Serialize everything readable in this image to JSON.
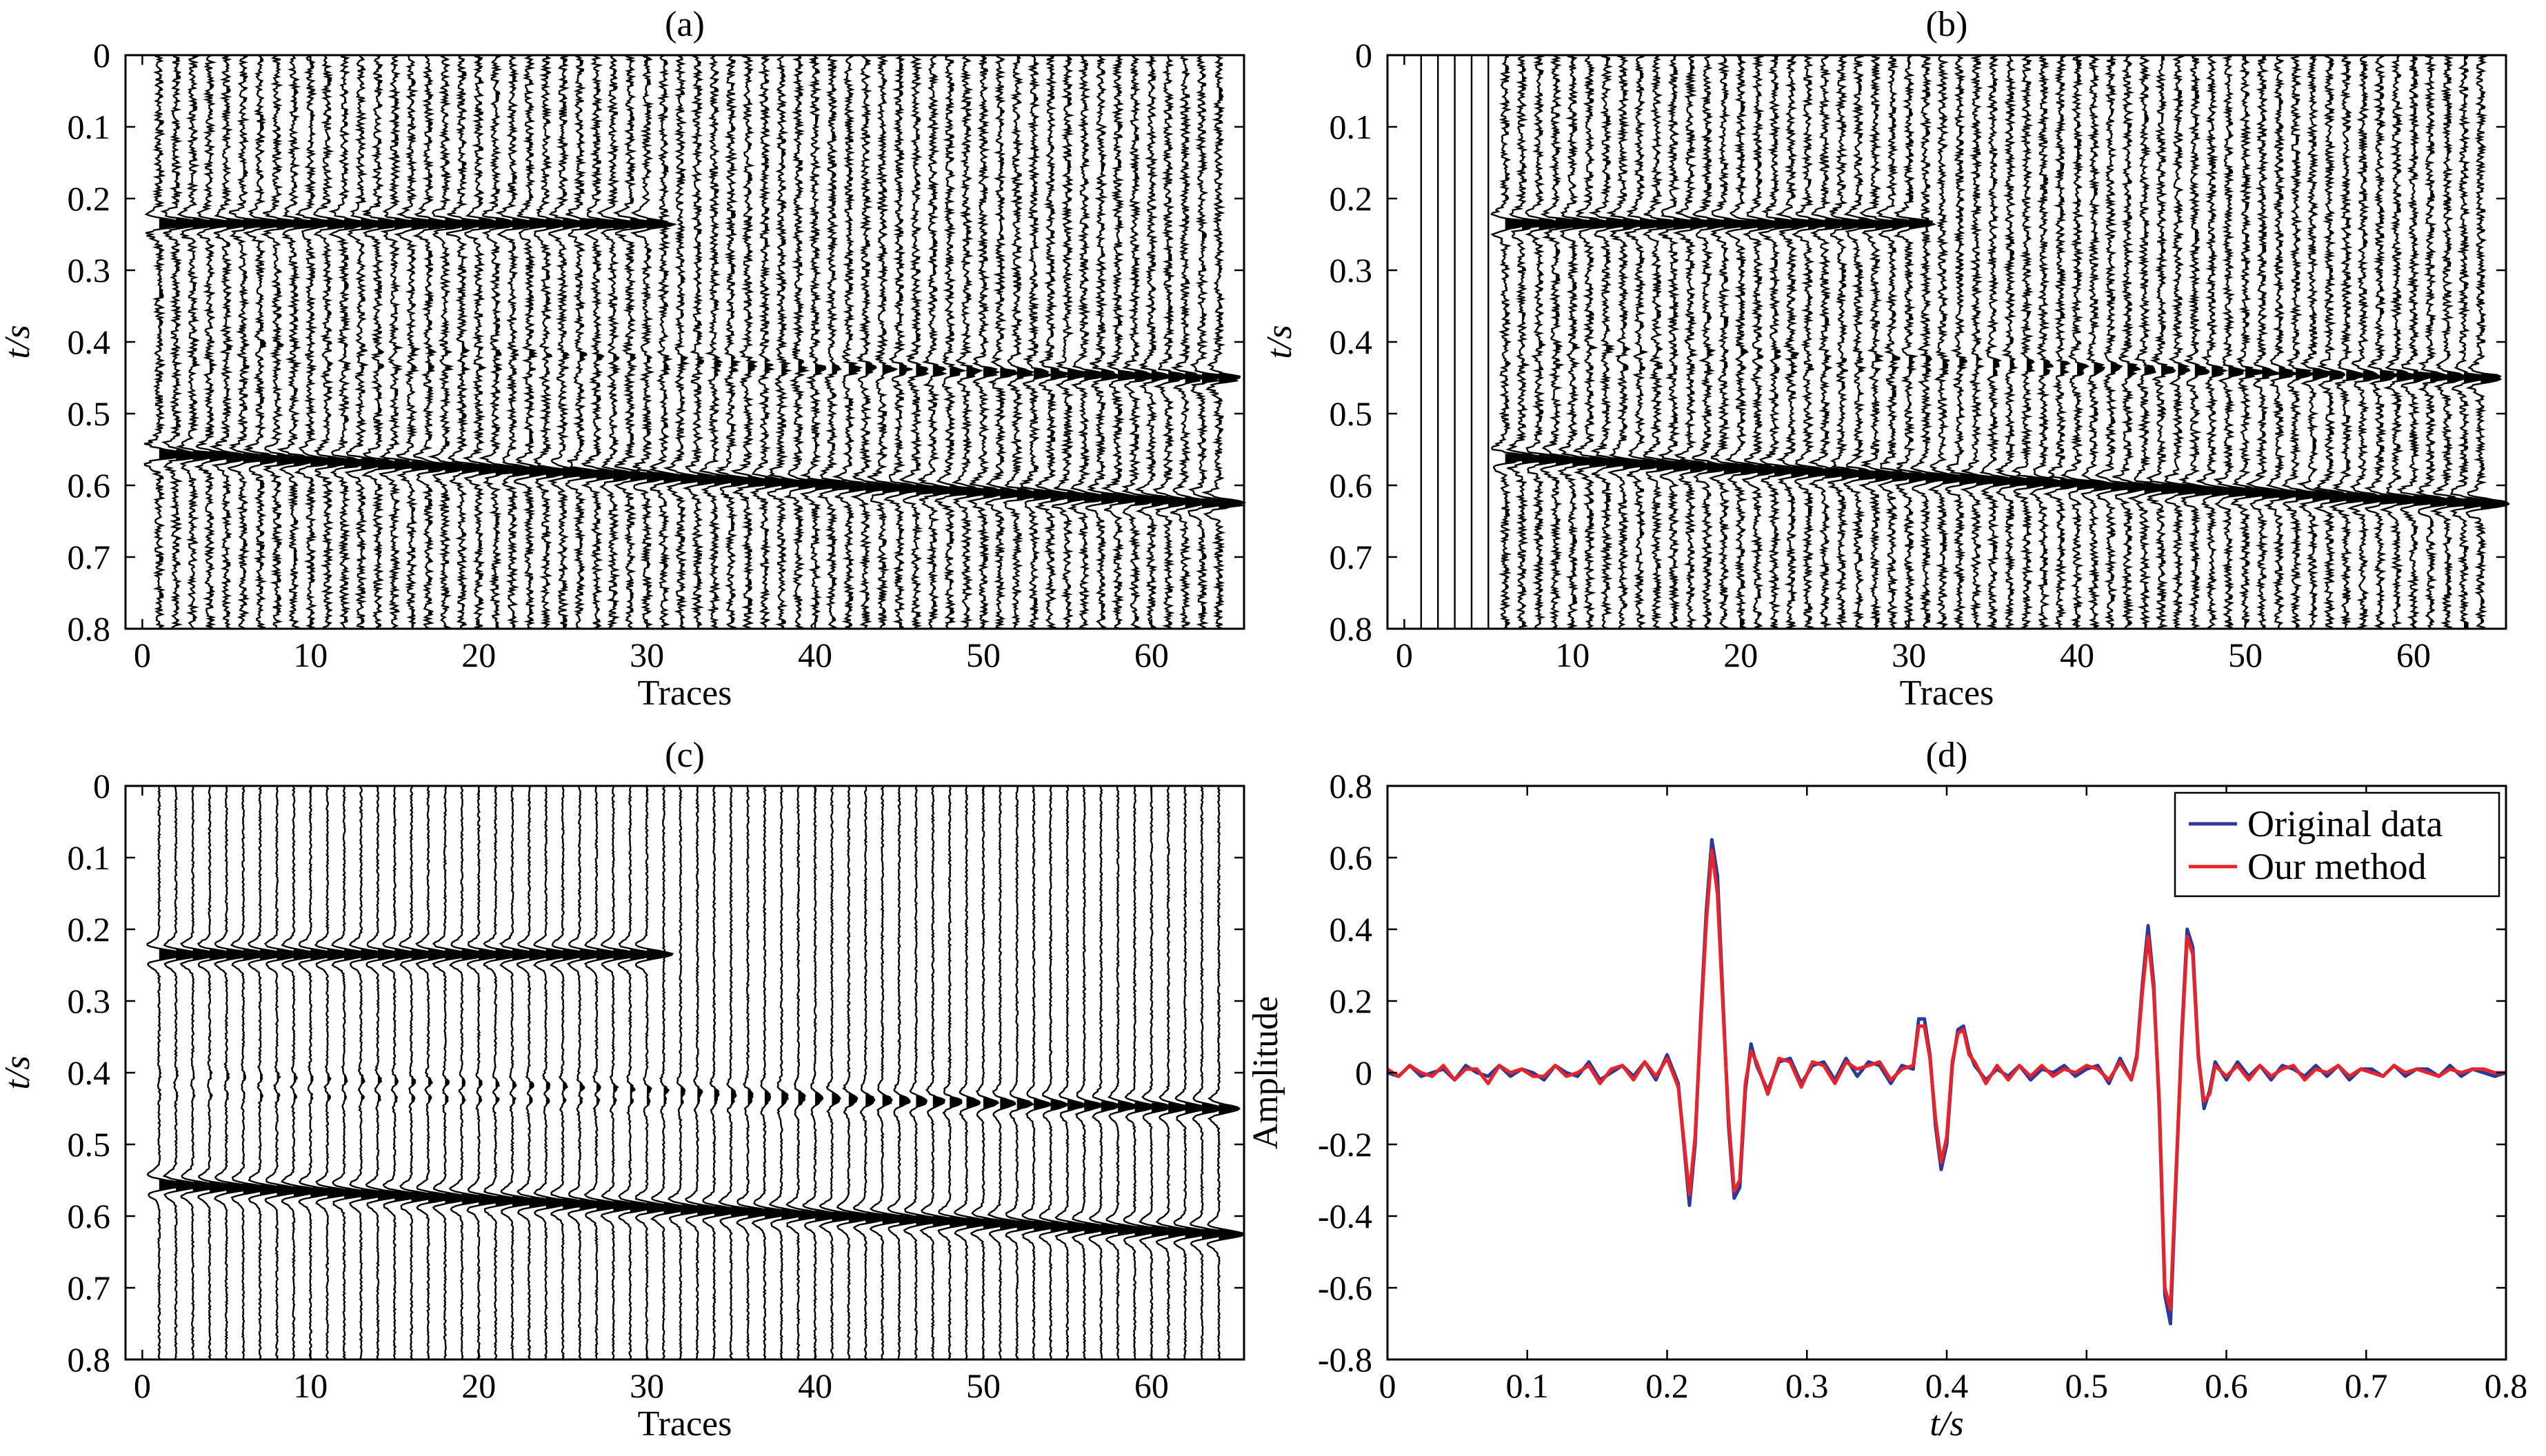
{
  "chart_data": [
    {
      "panel": "(a)",
      "type": "seismic-wiggle",
      "title": "(a)",
      "xlabel": "Traces",
      "ylabel": "t/s",
      "xlim": [
        -1,
        65.5
      ],
      "ylim": [
        0,
        0.8
      ],
      "y_inverted": true,
      "x_ticks": [
        "0",
        "10",
        "20",
        "30",
        "40",
        "50",
        "60"
      ],
      "y_ticks": [
        "0",
        "0.1",
        "0.2",
        "0.3",
        "0.4",
        "0.5",
        "0.6",
        "0.7",
        "0.8"
      ],
      "n_traces": 64,
      "events": [
        {
          "t0": 0.235,
          "slope": 0.0,
          "amp": 1.0,
          "end_trace": 30
        },
        {
          "t0": 0.555,
          "slope": 0.0011,
          "amp": 1.0,
          "end_trace": 64
        },
        {
          "t0": 0.4,
          "slope": 0.0008,
          "amp": 0.25,
          "grow": 1.0,
          "end_trace": 64
        },
        {
          "t0": 0.43,
          "slope": 0.0003,
          "amp": 0.2,
          "grow": 1.0,
          "end_trace": 64
        },
        {
          "t0": 0.225,
          "slope": -0.0008,
          "amp": 0.0,
          "grow": 1.0,
          "end_trace": 64
        }
      ],
      "noise": 0.35,
      "zeroed_traces": 0
    },
    {
      "panel": "(b)",
      "type": "seismic-wiggle",
      "title": "(b)",
      "xlabel": "Traces",
      "ylabel": "t/s",
      "xlim": [
        -1,
        65.5
      ],
      "ylim": [
        0,
        0.8
      ],
      "y_inverted": true,
      "x_ticks": [
        "0",
        "10",
        "20",
        "30",
        "40",
        "50",
        "60"
      ],
      "y_ticks": [
        "0",
        "0.1",
        "0.2",
        "0.3",
        "0.4",
        "0.5",
        "0.6",
        "0.7",
        "0.8"
      ],
      "n_traces": 64,
      "events": [
        {
          "t0": 0.235,
          "slope": 0.0,
          "amp": 1.0,
          "end_trace": 30
        },
        {
          "t0": 0.555,
          "slope": 0.0011,
          "amp": 1.0,
          "end_trace": 64
        },
        {
          "t0": 0.4,
          "slope": 0.0008,
          "amp": 0.25,
          "grow": 1.0,
          "end_trace": 64
        },
        {
          "t0": 0.43,
          "slope": 0.0003,
          "amp": 0.2,
          "grow": 1.0,
          "end_trace": 64
        },
        {
          "t0": 0.225,
          "slope": -0.0008,
          "amp": 0.0,
          "grow": 1.0,
          "end_trace": 64
        }
      ],
      "noise": 0.35,
      "zeroed_traces": 5
    },
    {
      "panel": "(c)",
      "type": "seismic-wiggle",
      "title": "(c)",
      "xlabel": "Traces",
      "ylabel": "t/s",
      "xlim": [
        -1,
        65.5
      ],
      "ylim": [
        0,
        0.8
      ],
      "y_inverted": true,
      "x_ticks": [
        "0",
        "10",
        "20",
        "30",
        "40",
        "50",
        "60"
      ],
      "y_ticks": [
        "0",
        "0.1",
        "0.2",
        "0.3",
        "0.4",
        "0.5",
        "0.6",
        "0.7",
        "0.8"
      ],
      "n_traces": 64,
      "events": [
        {
          "t0": 0.235,
          "slope": 0.0,
          "amp": 1.0,
          "end_trace": 30
        },
        {
          "t0": 0.555,
          "slope": 0.0011,
          "amp": 1.0,
          "end_trace": 64
        },
        {
          "t0": 0.4,
          "slope": 0.0008,
          "amp": 0.25,
          "grow": 1.0,
          "end_trace": 64
        },
        {
          "t0": 0.43,
          "slope": 0.0003,
          "amp": 0.2,
          "grow": 1.0,
          "end_trace": 64
        },
        {
          "t0": 0.225,
          "slope": -0.0008,
          "amp": 0.0,
          "grow": 1.0,
          "end_trace": 64
        }
      ],
      "noise": 0.08,
      "zeroed_traces": 0
    },
    {
      "panel": "(d)",
      "type": "line",
      "title": "(d)",
      "xlabel": "t/s",
      "ylabel": "Amplitude",
      "xlim": [
        0,
        0.8
      ],
      "ylim": [
        -0.8,
        0.8
      ],
      "x_ticks": [
        "0",
        "0.1",
        "0.2",
        "0.3",
        "0.4",
        "0.5",
        "0.6",
        "0.7",
        "0.8"
      ],
      "y_ticks": [
        "0.8",
        "0.6",
        "0.4",
        "0.2",
        "0",
        "-0.2",
        "-0.4",
        "-0.6",
        "-0.8"
      ],
      "legend_position": "top-right",
      "series": [
        {
          "name": "Original data",
          "color": "#2b3a9a",
          "x": [
            0,
            0.008,
            0.016,
            0.024,
            0.032,
            0.04,
            0.048,
            0.056,
            0.064,
            0.072,
            0.08,
            0.088,
            0.096,
            0.104,
            0.112,
            0.12,
            0.128,
            0.136,
            0.144,
            0.152,
            0.16,
            0.168,
            0.176,
            0.184,
            0.192,
            0.2,
            0.208,
            0.216,
            0.22,
            0.224,
            0.228,
            0.232,
            0.236,
            0.24,
            0.244,
            0.248,
            0.252,
            0.256,
            0.26,
            0.264,
            0.272,
            0.28,
            0.288,
            0.296,
            0.304,
            0.312,
            0.32,
            0.328,
            0.336,
            0.344,
            0.352,
            0.36,
            0.368,
            0.376,
            0.38,
            0.384,
            0.388,
            0.392,
            0.396,
            0.4,
            0.404,
            0.408,
            0.412,
            0.416,
            0.42,
            0.428,
            0.436,
            0.444,
            0.452,
            0.46,
            0.468,
            0.476,
            0.484,
            0.492,
            0.5,
            0.508,
            0.516,
            0.524,
            0.532,
            0.536,
            0.54,
            0.544,
            0.548,
            0.552,
            0.556,
            0.56,
            0.564,
            0.568,
            0.572,
            0.576,
            0.58,
            0.584,
            0.588,
            0.592,
            0.6,
            0.608,
            0.616,
            0.624,
            0.632,
            0.64,
            0.648,
            0.656,
            0.664,
            0.672,
            0.68,
            0.688,
            0.696,
            0.704,
            0.712,
            0.72,
            0.728,
            0.736,
            0.744,
            0.752,
            0.76,
            0.768,
            0.776,
            0.784,
            0.792,
            0.8
          ],
          "y": [
            0,
            -0.01,
            0.02,
            -0.01,
            0,
            0.01,
            -0.02,
            0.02,
            0,
            -0.01,
            0.02,
            -0.01,
            0.01,
            0,
            -0.02,
            0.02,
            0,
            -0.01,
            0.03,
            -0.02,
            0,
            0.02,
            -0.01,
            0.03,
            -0.02,
            0.05,
            -0.03,
            -0.37,
            -0.2,
            0.15,
            0.45,
            0.65,
            0.55,
            0.2,
            -0.15,
            -0.35,
            -0.32,
            -0.05,
            0.08,
            0.02,
            -0.05,
            0.03,
            0.04,
            -0.03,
            0.02,
            0.03,
            -0.02,
            0.04,
            -0.01,
            0.03,
            0.02,
            -0.03,
            0.02,
            0.01,
            0.15,
            0.15,
            0.05,
            -0.15,
            -0.27,
            -0.2,
            0.02,
            0.12,
            0.13,
            0.06,
            0.02,
            -0.02,
            0.01,
            -0.01,
            0.02,
            -0.02,
            0.01,
            0,
            0.02,
            -0.01,
            0.01,
            0.02,
            -0.03,
            0.04,
            -0.02,
            0.05,
            0.25,
            0.41,
            0.25,
            -0.1,
            -0.62,
            -0.7,
            -0.3,
            0.1,
            0.4,
            0.35,
            0.05,
            -0.1,
            -0.05,
            0.03,
            -0.02,
            0.03,
            -0.01,
            0.02,
            -0.02,
            0.02,
            0.01,
            -0.01,
            0.02,
            -0.01,
            0.02,
            -0.02,
            0.01,
            0.01,
            -0.01,
            0.02,
            -0.01,
            0.01,
            0.01,
            -0.01,
            0.02,
            -0.01,
            0.01,
            0,
            -0.01,
            0
          ]
        },
        {
          "name": "Our method",
          "color": "#e8242b",
          "x": [
            0,
            0.008,
            0.016,
            0.024,
            0.032,
            0.04,
            0.048,
            0.056,
            0.064,
            0.072,
            0.08,
            0.088,
            0.096,
            0.104,
            0.112,
            0.12,
            0.128,
            0.136,
            0.144,
            0.152,
            0.16,
            0.168,
            0.176,
            0.184,
            0.192,
            0.2,
            0.208,
            0.216,
            0.22,
            0.224,
            0.228,
            0.232,
            0.236,
            0.24,
            0.244,
            0.248,
            0.252,
            0.256,
            0.26,
            0.264,
            0.272,
            0.28,
            0.288,
            0.296,
            0.304,
            0.312,
            0.32,
            0.328,
            0.336,
            0.344,
            0.352,
            0.36,
            0.368,
            0.376,
            0.38,
            0.384,
            0.388,
            0.392,
            0.396,
            0.4,
            0.404,
            0.408,
            0.412,
            0.416,
            0.42,
            0.428,
            0.436,
            0.444,
            0.452,
            0.46,
            0.468,
            0.476,
            0.484,
            0.492,
            0.5,
            0.508,
            0.516,
            0.524,
            0.532,
            0.536,
            0.54,
            0.544,
            0.548,
            0.552,
            0.556,
            0.56,
            0.564,
            0.568,
            0.572,
            0.576,
            0.58,
            0.584,
            0.588,
            0.592,
            0.6,
            0.608,
            0.616,
            0.624,
            0.632,
            0.64,
            0.648,
            0.656,
            0.664,
            0.672,
            0.68,
            0.688,
            0.696,
            0.704,
            0.712,
            0.72,
            0.728,
            0.736,
            0.744,
            0.752,
            0.76,
            0.768,
            0.776,
            0.784,
            0.792,
            0.8
          ],
          "y": [
            0.01,
            -0.01,
            0.02,
            0,
            -0.01,
            0.02,
            -0.02,
            0.01,
            0.01,
            -0.03,
            0.02,
            0,
            0.01,
            -0.01,
            -0.01,
            0.02,
            -0.01,
            0,
            0.02,
            -0.03,
            0.01,
            0.02,
            -0.02,
            0.03,
            -0.01,
            0.04,
            -0.04,
            -0.34,
            -0.18,
            0.13,
            0.42,
            0.62,
            0.5,
            0.18,
            -0.13,
            -0.33,
            -0.3,
            -0.03,
            0.06,
            0.03,
            -0.06,
            0.04,
            0.03,
            -0.04,
            0.03,
            0.02,
            -0.03,
            0.03,
            0.01,
            0.02,
            0.03,
            -0.02,
            0.01,
            0.02,
            0.13,
            0.13,
            0.04,
            -0.13,
            -0.25,
            -0.18,
            0.03,
            0.11,
            0.12,
            0.05,
            0.03,
            -0.03,
            0.02,
            -0.02,
            0.02,
            -0.01,
            0.02,
            -0.01,
            0.01,
            0,
            0.02,
            0.01,
            -0.02,
            0.03,
            -0.02,
            0.04,
            0.23,
            0.38,
            0.23,
            -0.08,
            -0.6,
            -0.66,
            -0.28,
            0.08,
            0.38,
            0.33,
            0.04,
            -0.08,
            -0.06,
            0.02,
            -0.01,
            0.02,
            -0.02,
            0.02,
            -0.01,
            0.01,
            0.02,
            -0.02,
            0.01,
            0,
            0.02,
            -0.01,
            0.01,
            0,
            -0.01,
            0.02,
            0,
            0.01,
            0,
            -0.01,
            0.01,
            0,
            0.01,
            0.01,
            0,
            0
          ]
        }
      ]
    }
  ]
}
